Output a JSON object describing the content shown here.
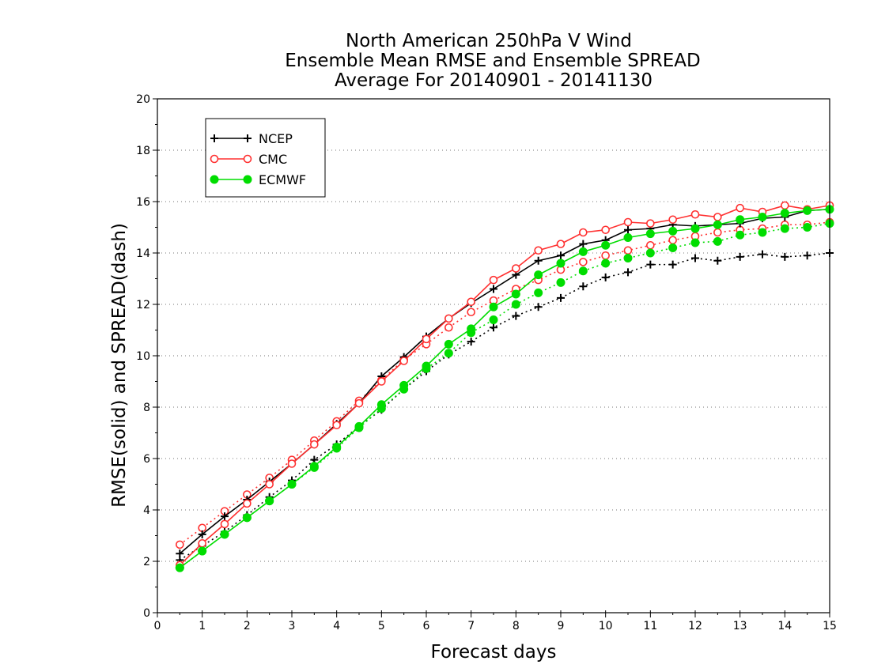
{
  "chart_data": {
    "type": "line",
    "title": [
      "North American 250hPa V Wind",
      "Ensemble Mean RMSE and Ensemble SPREAD",
      "Average For 20140901 - 20141130"
    ],
    "xlabel": "Forecast days",
    "ylabel": "RMSE(solid) and SPREAD(dash)",
    "xlim": [
      0,
      15
    ],
    "ylim": [
      0,
      20
    ],
    "x_ticks": [
      0,
      1,
      2,
      3,
      4,
      5,
      6,
      7,
      8,
      9,
      10,
      11,
      12,
      13,
      14,
      15
    ],
    "y_ticks": [
      0,
      2,
      4,
      6,
      8,
      10,
      12,
      14,
      16,
      18,
      20
    ],
    "grid": "horizontal dotted",
    "legend_position": "top-left",
    "x": [
      0.5,
      1,
      1.5,
      2,
      2.5,
      3,
      3.5,
      4,
      4.5,
      5,
      5.5,
      6,
      6.5,
      7,
      7.5,
      8,
      8.5,
      9,
      9.5,
      10,
      10.5,
      11,
      11.5,
      12,
      12.5,
      13,
      13.5,
      14,
      14.5,
      15
    ],
    "series": [
      {
        "name": "NCEP",
        "metric": "RMSE",
        "style": "solid",
        "marker": "plus",
        "color": "#000000",
        "values": [
          2.3,
          3.05,
          3.75,
          4.4,
          5.1,
          5.8,
          6.55,
          7.35,
          8.15,
          9.2,
          9.95,
          10.75,
          11.45,
          12.05,
          12.6,
          13.15,
          13.7,
          13.9,
          14.35,
          14.5,
          14.9,
          14.95,
          15.1,
          15.05,
          15.1,
          15.15,
          15.35,
          15.4,
          15.65,
          15.7
        ]
      },
      {
        "name": "NCEP",
        "metric": "SPREAD",
        "style": "dash",
        "marker": "plus",
        "color": "#000000",
        "values": [
          2.05,
          2.6,
          3.15,
          3.8,
          4.5,
          5.15,
          5.95,
          6.55,
          7.25,
          7.9,
          8.7,
          9.4,
          10.05,
          10.55,
          11.1,
          11.55,
          11.9,
          12.25,
          12.7,
          13.05,
          13.25,
          13.55,
          13.55,
          13.8,
          13.7,
          13.85,
          13.95,
          13.85,
          13.9,
          14.0
        ]
      },
      {
        "name": "CMC",
        "metric": "RMSE",
        "style": "solid",
        "marker": "open-circle",
        "color": "#ff3030",
        "values": [
          1.85,
          2.7,
          3.45,
          4.25,
          5.0,
          5.8,
          6.55,
          7.3,
          8.15,
          9.0,
          9.8,
          10.65,
          11.45,
          12.1,
          12.95,
          13.4,
          14.1,
          14.35,
          14.8,
          14.9,
          15.2,
          15.15,
          15.3,
          15.5,
          15.4,
          15.75,
          15.6,
          15.85,
          15.7,
          15.85
        ]
      },
      {
        "name": "CMC",
        "metric": "SPREAD",
        "style": "dash",
        "marker": "open-circle",
        "color": "#ff3030",
        "values": [
          2.65,
          3.3,
          3.95,
          4.6,
          5.25,
          5.95,
          6.7,
          7.45,
          8.25,
          9.05,
          9.85,
          10.45,
          11.1,
          11.7,
          12.15,
          12.6,
          12.95,
          13.35,
          13.65,
          13.9,
          14.1,
          14.3,
          14.5,
          14.65,
          14.8,
          14.9,
          14.95,
          15.1,
          15.1,
          15.2
        ]
      },
      {
        "name": "ECMWF",
        "metric": "RMSE",
        "style": "solid",
        "marker": "filled-circle",
        "color": "#00dd00",
        "values": [
          1.75,
          2.4,
          3.05,
          3.7,
          4.35,
          5.0,
          5.7,
          6.45,
          7.25,
          8.1,
          8.85,
          9.6,
          10.45,
          11.05,
          11.9,
          12.4,
          13.15,
          13.6,
          14.05,
          14.3,
          14.6,
          14.75,
          14.85,
          14.95,
          15.1,
          15.3,
          15.4,
          15.55,
          15.65,
          15.7
        ]
      },
      {
        "name": "ECMWF",
        "metric": "SPREAD",
        "style": "dash",
        "marker": "filled-circle",
        "color": "#00dd00",
        "values": [
          1.75,
          2.4,
          3.05,
          3.7,
          4.35,
          5.0,
          5.65,
          6.4,
          7.2,
          7.95,
          8.7,
          9.5,
          10.1,
          10.9,
          11.4,
          12.0,
          12.45,
          12.85,
          13.3,
          13.6,
          13.8,
          14.0,
          14.2,
          14.4,
          14.45,
          14.7,
          14.8,
          14.95,
          15.0,
          15.15
        ]
      }
    ]
  }
}
